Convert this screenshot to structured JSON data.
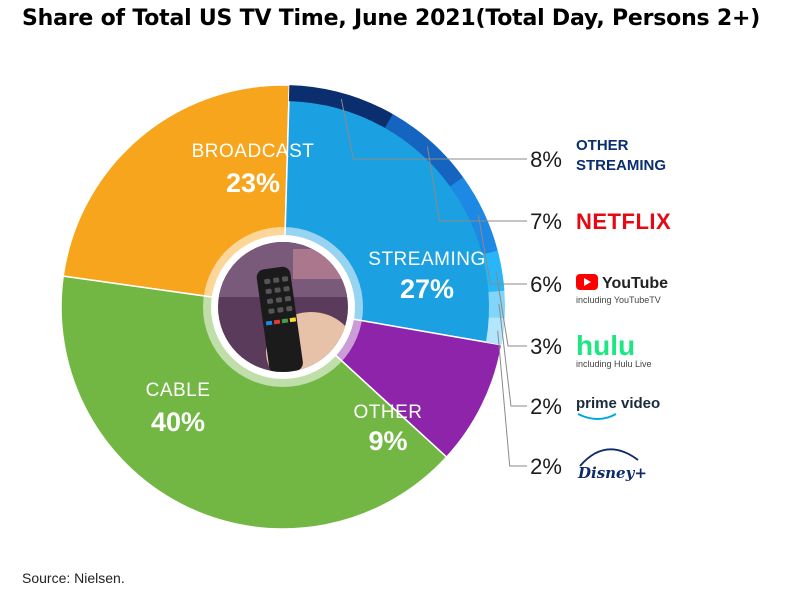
{
  "title": "Share of Total US TV Time, June 2021(Total Day, Persons 2+)",
  "source": "Source: Nielsen.",
  "chart_data": {
    "type": "pie",
    "segments": [
      {
        "label": "BROADCAST",
        "value": 23,
        "value_label": "23%",
        "color": "#F7A51C"
      },
      {
        "label": "STREAMING",
        "value": 27,
        "value_label": "27%",
        "color": "#1BA1E2"
      },
      {
        "label": "OTHER",
        "value": 9,
        "value_label": "9%",
        "color": "#8E24AA"
      },
      {
        "label": "CABLE",
        "value": 40,
        "value_label": "40%",
        "color": "#72B743"
      }
    ],
    "streaming_breakdown": [
      {
        "service": "OTHER STREAMING",
        "value": 8,
        "value_label": "8%",
        "color": "#0A2E6E"
      },
      {
        "service": "NETFLIX",
        "value": 7,
        "value_label": "7%",
        "color": "#1565C0"
      },
      {
        "service": "YouTube",
        "subtitle": "including YouTubeTV",
        "value": 6,
        "value_label": "6%",
        "color": "#1E88E5"
      },
      {
        "service": "hulu",
        "subtitle": "including Hulu Live",
        "value": 3,
        "value_label": "3%",
        "color": "#29B6F6"
      },
      {
        "service": "prime video",
        "value": 2,
        "value_label": "2%",
        "color": "#81D4FA"
      },
      {
        "service": "Disney+",
        "value": 2,
        "value_label": "2%",
        "color": "#B3E5FC"
      }
    ]
  }
}
